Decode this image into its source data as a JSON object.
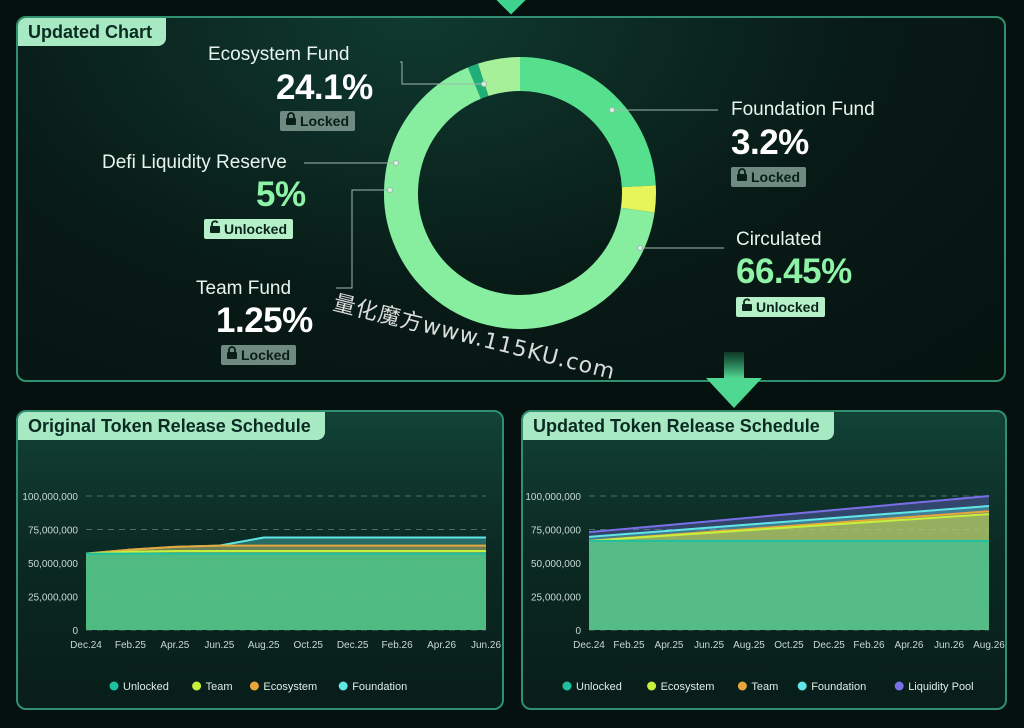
{
  "top_panel": {
    "title": "Updated Chart"
  },
  "status_labels": {
    "locked": "Locked",
    "unlocked": "Unlocked"
  },
  "chart_data": [
    {
      "type": "pie",
      "title": "Updated Chart",
      "slices": [
        {
          "name": "Ecosystem Fund",
          "value": 24.1,
          "label": "24.1%",
          "status": "Locked",
          "color": "#56e08e"
        },
        {
          "name": "Foundation Fund",
          "value": 3.2,
          "label": "3.2%",
          "status": "Locked",
          "color": "#e7f55a"
        },
        {
          "name": "Circulated",
          "value": 66.45,
          "label": "66.45%",
          "status": "Unlocked",
          "color": "#86ee9e"
        },
        {
          "name": "Team Fund",
          "value": 1.25,
          "label": "1.25%",
          "status": "Locked",
          "color": "#1fb07a"
        },
        {
          "name": "Defi Liquidity Reserve",
          "value": 5,
          "label": "5%",
          "status": "Unlocked",
          "color": "#a5f098"
        }
      ]
    },
    {
      "type": "area",
      "title": "Original Token Release Schedule",
      "categories": [
        "Dec.24",
        "Feb.25",
        "Apr.25",
        "Jun.25",
        "Aug.25",
        "Oct.25",
        "Dec.25",
        "Feb.26",
        "Apr.26",
        "Jun.26"
      ],
      "y_ticks": [
        "0",
        "25,000,000",
        "50,000,000",
        "75,000,000",
        "100,000,000"
      ],
      "ylim": [
        0,
        100000000
      ],
      "grid": true,
      "legend_position": "bottom",
      "series": [
        {
          "name": "Unlocked",
          "color": "#1fc0a0",
          "values": [
            57000000,
            57000000,
            57000000,
            57000000,
            57000000,
            57000000,
            57000000,
            57000000,
            57000000,
            57000000
          ]
        },
        {
          "name": "Team",
          "color": "#c6f03c",
          "values": [
            57000000,
            58500000,
            59000000,
            59000000,
            59000000,
            59000000,
            59000000,
            59000000,
            59000000,
            59000000
          ]
        },
        {
          "name": "Ecosystem",
          "color": "#e8a63a",
          "values": [
            57000000,
            60000000,
            62000000,
            63000000,
            63000000,
            63000000,
            63000000,
            63000000,
            63000000,
            63000000
          ]
        },
        {
          "name": "Foundation",
          "color": "#5fe6e6",
          "values": [
            57000000,
            60000000,
            62000000,
            63000000,
            69000000,
            69000000,
            69000000,
            69000000,
            69000000,
            69000000
          ]
        }
      ]
    },
    {
      "type": "area",
      "title": "Updated Token Release Schedule",
      "categories": [
        "Dec.24",
        "Feb.25",
        "Apr.25",
        "Jun.25",
        "Aug.25",
        "Oct.25",
        "Dec.25",
        "Feb.26",
        "Apr.26",
        "Jun.26",
        "Aug.26"
      ],
      "y_ticks": [
        "0",
        "25,000,000",
        "50,000,000",
        "75,000,000",
        "100,000,000"
      ],
      "ylim": [
        0,
        100000000
      ],
      "grid": true,
      "legend_position": "bottom",
      "series": [
        {
          "name": "Unlocked",
          "color": "#1fc0a0",
          "values": [
            66500000,
            66500000,
            66500000,
            66500000,
            66500000,
            66500000,
            66500000,
            66500000,
            66500000,
            66500000,
            66500000
          ]
        },
        {
          "name": "Ecosystem",
          "color": "#c6f03c",
          "values": [
            66500000,
            68500000,
            70500000,
            72500000,
            74500000,
            76500000,
            78500000,
            80500000,
            82500000,
            84500000,
            86500000
          ]
        },
        {
          "name": "Team",
          "color": "#e8a63a",
          "values": [
            66500000,
            68800000,
            71000000,
            73200000,
            75400000,
            77600000,
            79800000,
            82000000,
            84200000,
            86400000,
            88600000
          ]
        },
        {
          "name": "Foundation",
          "color": "#5fe6e6",
          "values": [
            69500000,
            71800000,
            74100000,
            76400000,
            78700000,
            81000000,
            83300000,
            85600000,
            87900000,
            90200000,
            92500000
          ]
        },
        {
          "name": "Liquidity Pool",
          "color": "#7b6fe8",
          "values": [
            73000000,
            75700000,
            78400000,
            81100000,
            83800000,
            86500000,
            89200000,
            91900000,
            94600000,
            97300000,
            100000000
          ]
        }
      ]
    }
  ],
  "watermark": "量化魔方www.115KU.com"
}
